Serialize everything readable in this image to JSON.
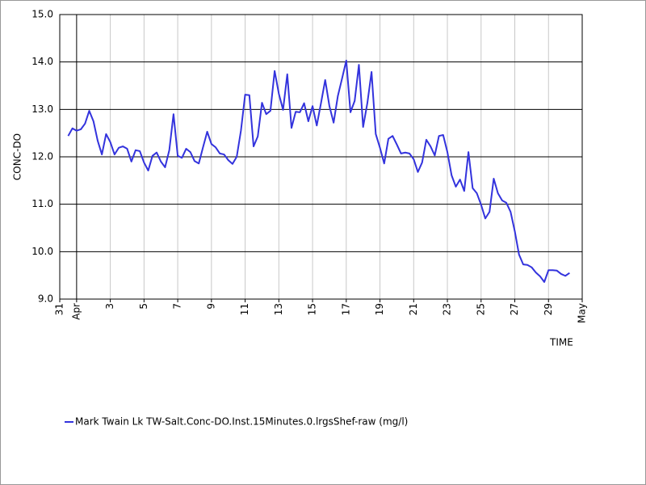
{
  "chart_data": {
    "type": "line",
    "xlabel": "TIME",
    "ylabel": "CONC-DO",
    "x": [
      0.5,
      0.75,
      1,
      1.25,
      1.5,
      1.75,
      2,
      2.25,
      2.5,
      2.75,
      3,
      3.25,
      3.5,
      3.75,
      4,
      4.25,
      4.5,
      4.75,
      5,
      5.25,
      5.5,
      5.75,
      6,
      6.25,
      6.5,
      6.75,
      7,
      7.25,
      7.5,
      7.75,
      8,
      8.25,
      8.5,
      8.75,
      9,
      9.25,
      9.5,
      9.75,
      10,
      10.25,
      10.5,
      10.75,
      11,
      11.25,
      11.5,
      11.75,
      12,
      12.25,
      12.5,
      12.75,
      13,
      13.25,
      13.5,
      13.75,
      14,
      14.25,
      14.5,
      14.75,
      15,
      15.25,
      15.5,
      15.75,
      16,
      16.25,
      16.5,
      16.75,
      17,
      17.25,
      17.5,
      17.75,
      18,
      18.25,
      18.5,
      18.75,
      19,
      19.25,
      19.5,
      19.75,
      20,
      20.25,
      20.5,
      20.75,
      21,
      21.25,
      21.5,
      21.75,
      22,
      22.25,
      22.5,
      22.75,
      23,
      23.25,
      23.5,
      23.75,
      24,
      24.25,
      24.5,
      24.75,
      25,
      25.25,
      25.5,
      25.75,
      26,
      26.25,
      26.5,
      26.75,
      27,
      27.25,
      27.5,
      27.75,
      28,
      28.25,
      28.5,
      28.75,
      29,
      29.25,
      29.5,
      29.75,
      30,
      30.25
    ],
    "series": [
      {
        "name": "Mark Twain Lk TW-Salt.Conc-DO.Inst.15Minutes.0.lrgsShef-raw (mg/l)",
        "color": "#3333dd",
        "values": [
          12.44,
          12.6,
          12.55,
          12.58,
          12.7,
          12.97,
          12.75,
          12.34,
          12.05,
          12.48,
          12.31,
          12.05,
          12.19,
          12.22,
          12.17,
          11.9,
          12.14,
          12.12,
          11.88,
          11.71,
          12.02,
          12.09,
          11.9,
          11.78,
          12.14,
          12.9,
          12.02,
          11.98,
          12.17,
          12.1,
          11.91,
          11.86,
          12.2,
          12.53,
          12.27,
          12.2,
          12.07,
          12.05,
          11.93,
          11.85,
          12.0,
          12.55,
          13.31,
          13.3,
          12.22,
          12.43,
          13.14,
          12.9,
          12.97,
          13.81,
          13.33,
          12.99,
          13.74,
          12.61,
          12.95,
          12.94,
          13.13,
          12.75,
          13.07,
          12.66,
          13.13,
          13.62,
          13.07,
          12.72,
          13.28,
          13.65,
          14.03,
          12.94,
          13.18,
          13.94,
          12.63,
          13.13,
          13.79,
          12.48,
          12.19,
          11.86,
          12.38,
          12.44,
          12.26,
          12.07,
          12.09,
          12.07,
          11.95,
          11.68,
          11.88,
          12.36,
          12.22,
          12.03,
          12.44,
          12.46,
          12.1,
          11.61,
          11.37,
          11.52,
          11.28,
          12.1,
          11.34,
          11.23,
          10.99,
          10.7,
          10.84,
          11.54,
          11.23,
          11.08,
          11.03,
          10.84,
          10.43,
          9.94,
          9.73,
          9.72,
          9.67,
          9.56,
          9.48,
          9.36,
          9.61,
          9.61,
          9.6,
          9.53,
          9.49,
          9.55
        ]
      }
    ],
    "xlim": [
      0,
      31
    ],
    "xticks": [
      {
        "value": 0,
        "label": "31"
      },
      {
        "value": 1,
        "label": "Apr"
      },
      3,
      5,
      7,
      9,
      11,
      13,
      15,
      17,
      19,
      21,
      23,
      25,
      27,
      29,
      {
        "value": 31,
        "label": "May"
      }
    ],
    "ylim": [
      9,
      15
    ],
    "yticks": [
      {
        "value": 9,
        "label": "9.0"
      },
      {
        "value": 10,
        "label": "10.0"
      },
      {
        "value": 11,
        "label": "11.0"
      },
      {
        "value": 12,
        "label": "12.0"
      },
      {
        "value": 13,
        "label": "13.0"
      },
      {
        "value": 14,
        "label": "14.0"
      },
      {
        "value": 15,
        "label": "15.0"
      }
    ],
    "grid": true
  }
}
